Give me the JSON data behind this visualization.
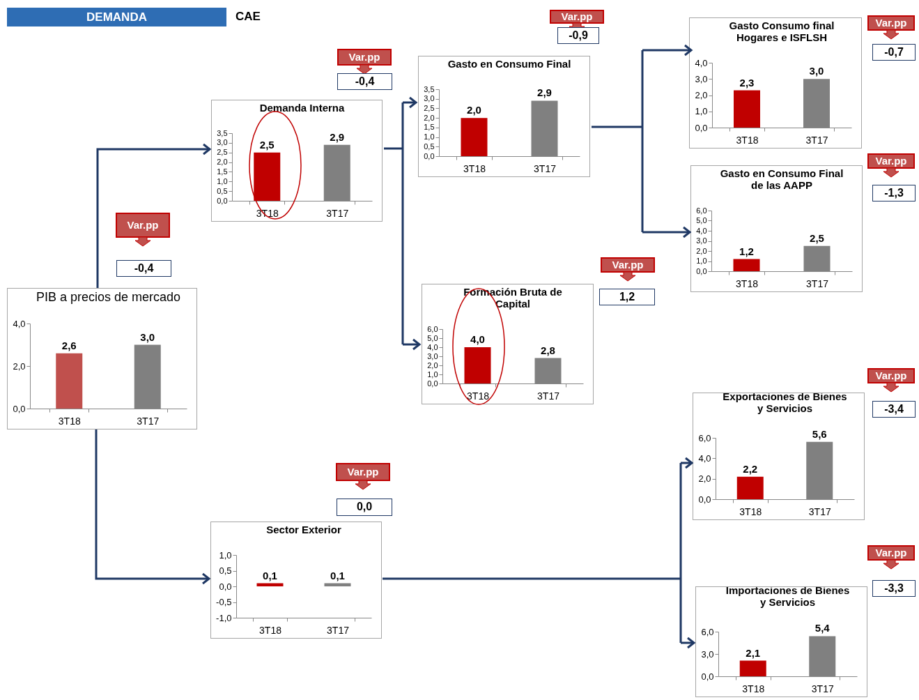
{
  "chart_data": [
    {
      "type": "bar",
      "title": "PIB a precios de mercado",
      "categories": [
        "3T18",
        "3T17"
      ],
      "values": [
        2.6,
        3.0
      ],
      "colors": [
        "#c0504d",
        "#808080"
      ],
      "ylim": [
        0,
        4
      ],
      "yticks": [
        {
          "value": 0,
          "label": "0,0"
        },
        {
          "value": 2,
          "label": "2,0"
        },
        {
          "value": 4,
          "label": "4,0"
        }
      ],
      "value_labels": [
        "2,6",
        "3,0"
      ],
      "annotations": [
        "Var.pp",
        "-0,4",
        "DEMANDA",
        "CAE"
      ]
    },
    {
      "type": "bar",
      "title": "Demanda Interna",
      "categories": [
        "3T18",
        "3T17"
      ],
      "values": [
        2.5,
        2.9
      ],
      "colors": [
        "#c00000",
        "#808080"
      ],
      "ylim": [
        0,
        3.5
      ],
      "yticks": [
        {
          "value": 0,
          "label": "0,0"
        },
        {
          "value": 0.5,
          "label": "0,5"
        },
        {
          "value": 1,
          "label": "1,0"
        },
        {
          "value": 1.5,
          "label": "1,5"
        },
        {
          "value": 2,
          "label": "2,0"
        },
        {
          "value": 2.5,
          "label": "2,5"
        },
        {
          "value": 3,
          "label": "3,0"
        },
        {
          "value": 3.5,
          "label": "3,5"
        }
      ],
      "value_labels": [
        "2,5",
        "2,9"
      ],
      "annotations": [
        "Var.pp",
        "-0,4"
      ]
    },
    {
      "type": "bar",
      "title": "Gasto en Consumo Final",
      "categories": [
        "3T18",
        "3T17"
      ],
      "values": [
        2.0,
        2.9
      ],
      "colors": [
        "#c00000",
        "#808080"
      ],
      "ylim": [
        0,
        3.5
      ],
      "yticks": [
        {
          "value": 0,
          "label": "0,0"
        },
        {
          "value": 0.5,
          "label": "0,5"
        },
        {
          "value": 1,
          "label": "1,0"
        },
        {
          "value": 1.5,
          "label": "1,5"
        },
        {
          "value": 2,
          "label": "2,0"
        },
        {
          "value": 2.5,
          "label": "2,5"
        },
        {
          "value": 3,
          "label": "3,0"
        },
        {
          "value": 3.5,
          "label": "3,5"
        }
      ],
      "value_labels": [
        "2,0",
        "2,9"
      ],
      "annotations": [
        "Var.pp",
        "-0,9"
      ]
    },
    {
      "type": "bar",
      "title": "Gasto Consumo final Hogares e ISFLSH",
      "categories": [
        "3T18",
        "3T17"
      ],
      "values": [
        2.3,
        3.0
      ],
      "colors": [
        "#c00000",
        "#808080"
      ],
      "ylim": [
        0,
        4
      ],
      "yticks": [
        {
          "value": 0,
          "label": "0,0"
        },
        {
          "value": 1,
          "label": "1,0"
        },
        {
          "value": 2,
          "label": "2,0"
        },
        {
          "value": 3,
          "label": "3,0"
        },
        {
          "value": 4,
          "label": "4,0"
        }
      ],
      "value_labels": [
        "2,3",
        "3,0"
      ],
      "annotations": [
        "Var.pp",
        "-0,7"
      ]
    },
    {
      "type": "bar",
      "title": "Gasto en Consumo Final de las AAPP",
      "categories": [
        "3T18",
        "3T17"
      ],
      "values": [
        1.2,
        2.5
      ],
      "colors": [
        "#c00000",
        "#808080"
      ],
      "ylim": [
        0,
        6
      ],
      "yticks": [
        {
          "value": 0,
          "label": "0,0"
        },
        {
          "value": 1,
          "label": "1,0"
        },
        {
          "value": 2,
          "label": "2,0"
        },
        {
          "value": 3,
          "label": "3,0"
        },
        {
          "value": 4,
          "label": "4,0"
        },
        {
          "value": 5,
          "label": "5,0"
        },
        {
          "value": 6,
          "label": "6,0"
        }
      ],
      "value_labels": [
        "1,2",
        "2,5"
      ],
      "annotations": [
        "Var.pp",
        "-1,3"
      ]
    },
    {
      "type": "bar",
      "title": "Formación Bruta de Capital",
      "categories": [
        "3T18",
        "3T17"
      ],
      "values": [
        4.0,
        2.8
      ],
      "colors": [
        "#c00000",
        "#808080"
      ],
      "ylim": [
        0,
        6
      ],
      "yticks": [
        {
          "value": 0,
          "label": "0,0"
        },
        {
          "value": 1,
          "label": "1,0"
        },
        {
          "value": 2,
          "label": "2,0"
        },
        {
          "value": 3,
          "label": "3,0"
        },
        {
          "value": 4,
          "label": "4,0"
        },
        {
          "value": 5,
          "label": "5,0"
        },
        {
          "value": 6,
          "label": "6,0"
        }
      ],
      "value_labels": [
        "4,0",
        "2,8"
      ],
      "annotations": [
        "Var.pp",
        "1,2"
      ]
    },
    {
      "type": "bar",
      "title": "Exportaciones de Bienes y Servicios",
      "categories": [
        "3T18",
        "3T17"
      ],
      "values": [
        2.2,
        5.6
      ],
      "colors": [
        "#c00000",
        "#808080"
      ],
      "ylim": [
        0,
        6
      ],
      "yticks": [
        {
          "value": 0,
          "label": "0,0"
        },
        {
          "value": 2,
          "label": "2,0"
        },
        {
          "value": 4,
          "label": "4,0"
        },
        {
          "value": 6,
          "label": "6,0"
        }
      ],
      "value_labels": [
        "2,2",
        "5,6"
      ],
      "annotations": [
        "Var.pp",
        "-3,4"
      ]
    },
    {
      "type": "bar",
      "title": "Importaciones de Bienes y Servicios",
      "categories": [
        "3T18",
        "3T17"
      ],
      "values": [
        2.1,
        5.4
      ],
      "colors": [
        "#c00000",
        "#808080"
      ],
      "ylim": [
        0,
        6
      ],
      "yticks": [
        {
          "value": 0,
          "label": "0,0"
        },
        {
          "value": 3,
          "label": "3,0"
        },
        {
          "value": 6,
          "label": "6,0"
        }
      ],
      "value_labels": [
        "2,1",
        "5,4"
      ],
      "annotations": [
        "Var.pp",
        "-3,3"
      ]
    },
    {
      "type": "bar",
      "title": "Sector Exterior",
      "categories": [
        "3T18",
        "3T17"
      ],
      "values": [
        0.1,
        0.1
      ],
      "colors": [
        "#c00000",
        "#808080"
      ],
      "ylim": [
        -1,
        1
      ],
      "yticks": [
        {
          "value": -1,
          "label": "-1,0"
        },
        {
          "value": -0.5,
          "label": "-0,5"
        },
        {
          "value": 0,
          "label": "0,0"
        },
        {
          "value": 0.5,
          "label": "0,5"
        },
        {
          "value": 1,
          "label": "1,0"
        }
      ],
      "value_labels": [
        "0,1",
        "0,1"
      ],
      "annotations": [
        "Var.pp",
        "0,0"
      ]
    }
  ]
}
